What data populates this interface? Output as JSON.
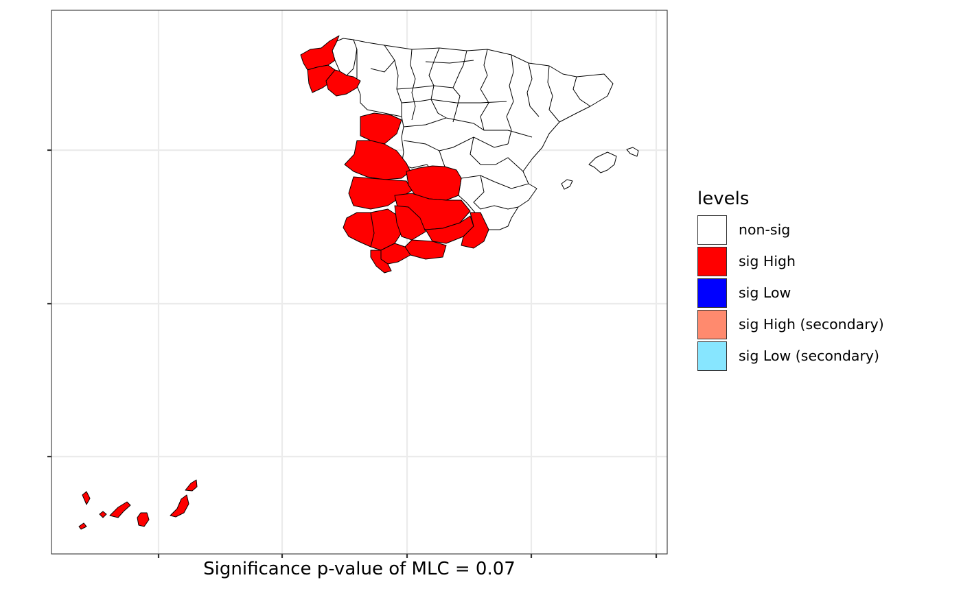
{
  "caption": "Significance p-value of MLC = 0.07",
  "legend": {
    "title": "levels",
    "items": [
      {
        "label": "non-sig",
        "color": "#FFFFFF"
      },
      {
        "label": "sig High",
        "color": "#FF0000"
      },
      {
        "label": "sig Low",
        "color": "#0000FF"
      },
      {
        "label": "sig High (secondary)",
        "color": "#FF8A6E"
      },
      {
        "label": "sig Low (secondary)",
        "color": "#87E6FF"
      }
    ]
  },
  "map": {
    "panel_background": "#FFFFFF",
    "grid": true,
    "axis_tick_labels_shown": false,
    "regions": [
      {
        "name": "Galicia (A Coruña)",
        "level": "sig High"
      },
      {
        "name": "Galicia (Lugo)",
        "level": "non-sig"
      },
      {
        "name": "Galicia (Pontevedra)",
        "level": "sig High"
      },
      {
        "name": "Galicia (Ourense)",
        "level": "sig High"
      },
      {
        "name": "Northern and central provinces",
        "level": "non-sig"
      },
      {
        "name": "Salamanca",
        "level": "sig High"
      },
      {
        "name": "Cáceres",
        "level": "sig High"
      },
      {
        "name": "Badajoz",
        "level": "sig High"
      },
      {
        "name": "Toledo",
        "level": "sig High"
      },
      {
        "name": "Ciudad Real",
        "level": "sig High"
      },
      {
        "name": "Huelva",
        "level": "sig High"
      },
      {
        "name": "Sevilla",
        "level": "sig High"
      },
      {
        "name": "Córdoba",
        "level": "sig High"
      },
      {
        "name": "Jaén",
        "level": "sig High"
      },
      {
        "name": "Granada",
        "level": "sig High"
      },
      {
        "name": "Almería",
        "level": "sig High"
      },
      {
        "name": "Málaga",
        "level": "sig High"
      },
      {
        "name": "Cádiz",
        "level": "sig High"
      },
      {
        "name": "Murcia",
        "level": "sig High"
      },
      {
        "name": "Balearic Islands",
        "level": "non-sig"
      },
      {
        "name": "Canary Islands",
        "level": "sig High"
      }
    ]
  }
}
